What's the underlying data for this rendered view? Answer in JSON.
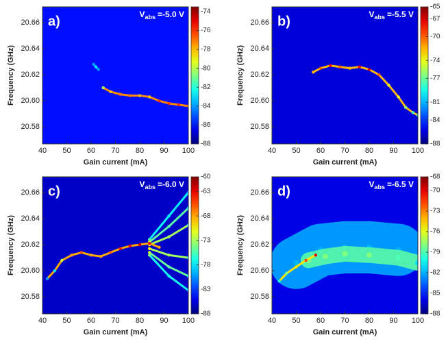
{
  "chart_data": [
    {
      "type": "heatmap",
      "panel_label": "a)",
      "annotation": {
        "symbol": "V",
        "subscript": "abs",
        "text": "=-5.0 V"
      },
      "x_label": "Gain current (mA)",
      "y_label": "Frequency (GHz)",
      "xlim": [
        40,
        100
      ],
      "xticks": [
        40,
        50,
        60,
        70,
        80,
        90,
        100
      ],
      "ylim": [
        20.567,
        20.672
      ],
      "yticks": [
        {
          "value": 20.58,
          "label": "20.58"
        },
        {
          "value": 20.6,
          "label": "20.60"
        },
        20.62,
        20.64,
        20.66
      ],
      "clim": [
        -88,
        -73.5
      ],
      "cticks": [
        -88,
        -86,
        -84,
        -82,
        -80,
        -78,
        -76,
        -74
      ],
      "background_level": -86,
      "series": [
        {
          "x": [
            61,
            62,
            63
          ],
          "values": [
            20.628,
            20.626,
            20.624
          ],
          "levels": [
            -84,
            -83,
            -84
          ]
        },
        {
          "x": [
            65,
            68,
            72,
            76,
            80,
            84,
            88,
            92,
            96,
            100
          ],
          "values": [
            20.61,
            20.607,
            20.605,
            20.604,
            20.604,
            20.603,
            20.6,
            20.598,
            20.597,
            20.596
          ],
          "levels": [
            -80,
            -78,
            -77,
            -77,
            -78,
            -78,
            -76,
            -76,
            -76,
            -77
          ]
        }
      ]
    },
    {
      "type": "heatmap",
      "panel_label": "b)",
      "annotation": {
        "symbol": "V",
        "subscript": "abs",
        "text": "=-5.5 V"
      },
      "x_label": "Gain current (mA)",
      "y_label": "Frequency (GHz)",
      "xlim": [
        40,
        100
      ],
      "xticks": [
        40,
        50,
        60,
        70,
        80,
        90,
        100
      ],
      "ylim": [
        20.567,
        20.672
      ],
      "yticks": [
        {
          "value": 20.58,
          "label": "20.58"
        },
        {
          "value": 20.6,
          "label": "20.60"
        },
        20.62,
        20.64,
        20.66
      ],
      "clim": [
        -88,
        -65
      ],
      "cticks": [
        -88,
        -84,
        -81,
        -77,
        -74,
        -70,
        -67,
        -65
      ],
      "background_level": -86,
      "series": [
        {
          "x": [
            57,
            60,
            64,
            68,
            72,
            76,
            80,
            84,
            88,
            92,
            95,
            98,
            100
          ],
          "values": [
            20.622,
            20.625,
            20.627,
            20.626,
            20.625,
            20.626,
            20.624,
            20.62,
            20.612,
            20.603,
            20.595,
            20.591,
            20.589
          ],
          "levels": [
            -72,
            -70,
            -68,
            -70,
            -72,
            -68,
            -67,
            -70,
            -74,
            -74,
            -76,
            -78,
            -78
          ]
        }
      ]
    },
    {
      "type": "heatmap",
      "panel_label": "c)",
      "annotation": {
        "symbol": "V",
        "subscript": "abs",
        "text": "=-6.0 V"
      },
      "x_label": "Gain current (mA)",
      "y_label": "Frequency (GHz)",
      "xlim": [
        40,
        100
      ],
      "xticks": [
        40,
        50,
        60,
        70,
        80,
        90,
        100
      ],
      "ylim": [
        20.567,
        20.672
      ],
      "yticks": [
        {
          "value": 20.58,
          "label": "20.58"
        },
        {
          "value": 20.6,
          "label": "20.60"
        },
        20.62,
        20.64,
        20.66
      ],
      "clim": [
        -88,
        -60
      ],
      "cticks": [
        -88,
        -83,
        -78,
        -73,
        -68,
        -63,
        -60
      ],
      "background_level": -86,
      "series": [
        {
          "x": [
            84,
            92,
            100
          ],
          "values": [
            20.624,
            20.642,
            20.66
          ],
          "levels": [
            -75,
            -78,
            -80
          ]
        },
        {
          "x": [
            84,
            92,
            100
          ],
          "values": [
            20.622,
            20.634,
            20.648
          ],
          "levels": [
            -72,
            -75,
            -78
          ]
        },
        {
          "x": [
            84,
            92,
            100
          ],
          "values": [
            20.62,
            20.626,
            20.635
          ],
          "levels": [
            -70,
            -73,
            -76
          ]
        },
        {
          "x": [
            84,
            92,
            100
          ],
          "values": [
            20.617,
            20.612,
            20.61
          ],
          "levels": [
            -70,
            -73,
            -76
          ]
        },
        {
          "x": [
            84,
            92,
            100
          ],
          "values": [
            20.614,
            20.603,
            20.596
          ],
          "levels": [
            -72,
            -75,
            -77
          ]
        },
        {
          "x": [
            84,
            92,
            100
          ],
          "values": [
            20.612,
            20.596,
            20.585
          ],
          "levels": [
            -74,
            -77,
            -80
          ]
        },
        {
          "x": [
            42,
            45,
            48,
            52,
            56,
            60,
            64,
            68,
            72,
            76,
            80,
            84,
            88
          ],
          "values": [
            20.594,
            20.6,
            20.608,
            20.612,
            20.614,
            20.612,
            20.611,
            20.614,
            20.617,
            20.619,
            20.62,
            20.621,
            20.618
          ],
          "levels": [
            -80,
            -78,
            -72,
            -68,
            -66,
            -68,
            -68,
            -66,
            -64,
            -63,
            -62,
            -63,
            -68
          ]
        }
      ]
    },
    {
      "type": "heatmap",
      "panel_label": "d)",
      "annotation": {
        "symbol": "V",
        "subscript": "abs",
        "text": "=-6.5 V"
      },
      "x_label": "Gain current (mA)",
      "y_label": "Frequency (GHz)",
      "xlim": [
        40,
        100
      ],
      "xticks": [
        40,
        50,
        60,
        70,
        80,
        90,
        100
      ],
      "ylim": [
        20.567,
        20.672
      ],
      "yticks": [
        {
          "value": 20.58,
          "label": "20.58"
        },
        {
          "value": 20.6,
          "label": "20.60"
        },
        20.62,
        20.64,
        20.66
      ],
      "clim": [
        -88,
        -68
      ],
      "cticks": [
        -88,
        -85,
        -82,
        -79,
        -76,
        -73,
        -70,
        -68
      ],
      "background_level": -86,
      "series": [
        {
          "x": [
            50,
            60,
            70,
            80,
            92
          ],
          "values": [
            20.606,
            20.616,
            20.618,
            20.618,
            20.616
          ],
          "levels": [
            -82,
            -82,
            -82,
            -82,
            -82
          ],
          "spread": 0.02
        },
        {
          "x": [
            55,
            62,
            70,
            80,
            92,
            100
          ],
          "values": [
            20.608,
            20.611,
            20.613,
            20.612,
            20.61,
            20.606
          ],
          "levels": [
            -78,
            -78,
            -78,
            -78,
            -79,
            -81
          ],
          "spread": 0.006
        },
        {
          "x": [
            43,
            46,
            50,
            54,
            58
          ],
          "values": [
            20.592,
            20.598,
            20.603,
            20.608,
            20.612
          ],
          "levels": [
            -80,
            -78,
            -75,
            -72,
            -70
          ]
        }
      ]
    }
  ]
}
